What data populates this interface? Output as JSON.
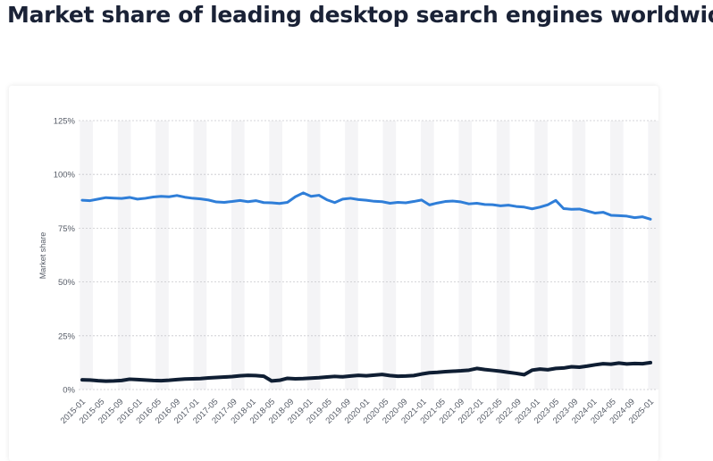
{
  "header": {
    "title": "Market share of leading desktop search engines worldwide"
  },
  "chart_data": {
    "type": "line",
    "ylabel": "Market share",
    "xlabel": "",
    "ylim": [
      0,
      125
    ],
    "yticks": [
      0,
      25,
      50,
      75,
      100,
      125
    ],
    "ytick_labels": [
      "0%",
      "25%",
      "50%",
      "75%",
      "100%",
      "125%"
    ],
    "x_tick_labels": [
      "2015-01",
      "2015-05",
      "2015-09",
      "2016-01",
      "2016-05",
      "2016-09",
      "2017-01",
      "2017-05",
      "2017-09",
      "2018-01",
      "2018-05",
      "2018-09",
      "2019-01",
      "2019-05",
      "2019-09",
      "2020-01",
      "2020-05",
      "2020-09",
      "2021-01",
      "2021-05",
      "2021-09",
      "2022-01",
      "2022-05",
      "2022-09",
      "2023-01",
      "2023-05",
      "2023-09",
      "2024-01",
      "2024-05",
      "2024-09",
      "2025-01"
    ],
    "grid": true,
    "legend": "none",
    "colors": {
      "series1": "#2f7ed8",
      "series2": "#0f1e33",
      "band": "#f4f4f6"
    },
    "series": [
      {
        "values": [
          88.0,
          87.8,
          88.5,
          89.2,
          89.0,
          88.8,
          89.3,
          88.5,
          88.9,
          89.5,
          89.8,
          89.6,
          90.2,
          89.4,
          88.9,
          88.6,
          88.1,
          87.2,
          87.0,
          87.4,
          87.9,
          87.3,
          87.8,
          86.9,
          86.8,
          86.5,
          87.0,
          89.6,
          91.4,
          89.8,
          90.3,
          88.2,
          86.9,
          88.5,
          88.9,
          88.3,
          88.0,
          87.5,
          87.3,
          86.6,
          87.0,
          86.8,
          87.4,
          88.1,
          85.8,
          86.7,
          87.4,
          87.6,
          87.2,
          86.3,
          86.6,
          86.0,
          85.9,
          85.4,
          85.7,
          85.1,
          84.8,
          84.0,
          84.8,
          85.9,
          87.9,
          84.1,
          83.8,
          83.9,
          83.0,
          82.0,
          82.4,
          81.0,
          80.8,
          80.6,
          79.9,
          80.3,
          79.2
        ]
      },
      {
        "values": [
          4.5,
          4.4,
          4.1,
          3.9,
          4.0,
          4.2,
          4.8,
          4.6,
          4.4,
          4.2,
          4.1,
          4.3,
          4.6,
          4.9,
          5.0,
          5.1,
          5.4,
          5.6,
          5.8,
          6.0,
          6.4,
          6.6,
          6.5,
          6.2,
          4.0,
          4.3,
          5.2,
          5.0,
          5.1,
          5.3,
          5.5,
          5.8,
          6.1,
          5.9,
          6.3,
          6.6,
          6.4,
          6.7,
          7.0,
          6.5,
          6.2,
          6.3,
          6.5,
          7.2,
          7.8,
          8.0,
          8.3,
          8.5,
          8.7,
          9.0,
          9.8,
          9.3,
          8.9,
          8.5,
          8.0,
          7.5,
          6.9,
          9.0,
          9.5,
          9.2,
          9.8,
          10.0,
          10.6,
          10.4,
          10.9,
          11.5,
          12.0,
          11.8,
          12.3,
          11.9,
          12.1,
          12.0,
          12.5
        ]
      }
    ]
  }
}
